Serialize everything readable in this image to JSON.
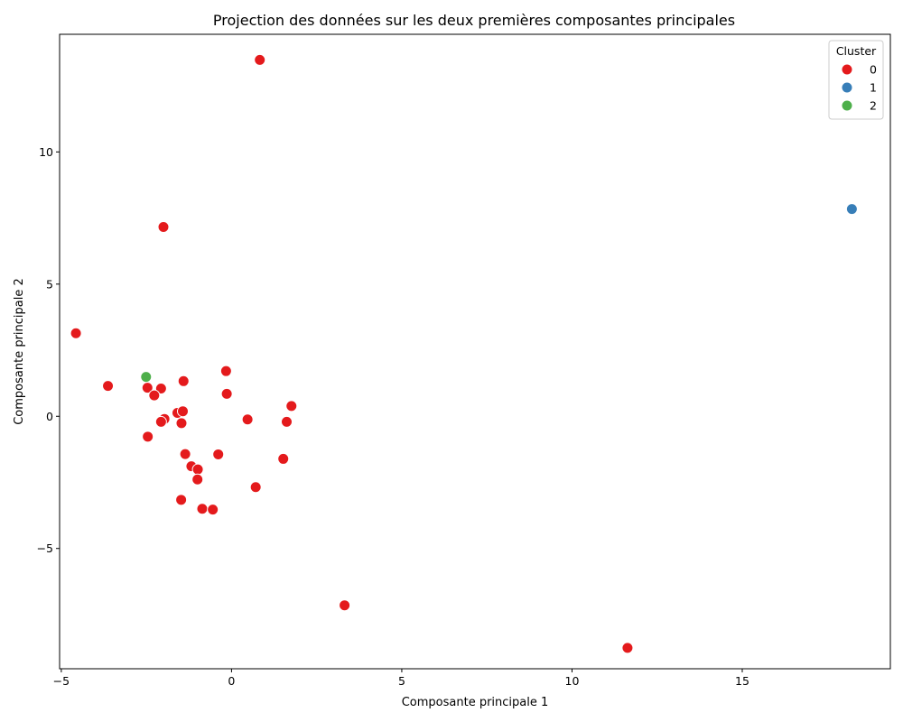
{
  "chart_data": {
    "type": "scatter",
    "title": "Projection des données sur les deux premières composantes principales",
    "xlabel": "Composante principale 1",
    "ylabel": "Composante principale 2",
    "xlim": [
      -5.05,
      19.35
    ],
    "ylim": [
      -9.55,
      14.45
    ],
    "xticks": [
      -5,
      0,
      5,
      10,
      15
    ],
    "xtick_labels": [
      "−5",
      "0",
      "5",
      "10",
      "15"
    ],
    "yticks": [
      -5,
      0,
      5,
      10
    ],
    "ytick_labels": [
      "−5",
      "0",
      "5",
      "10"
    ],
    "grid": false,
    "legend": {
      "title": "Cluster",
      "position": "top-right",
      "entries": [
        {
          "label": "0",
          "color": "#e41a1c"
        },
        {
          "label": "1",
          "color": "#377eb8"
        },
        {
          "label": "2",
          "color": "#4daf4a"
        }
      ]
    },
    "series": [
      {
        "name": "0",
        "color": "#e41a1c",
        "points": [
          [
            0.83,
            13.48
          ],
          [
            -2.0,
            7.16
          ],
          [
            -4.57,
            3.14
          ],
          [
            -3.63,
            1.15
          ],
          [
            -2.47,
            1.08
          ],
          [
            -2.07,
            1.05
          ],
          [
            -2.27,
            0.79
          ],
          [
            -1.41,
            1.33
          ],
          [
            -0.16,
            1.71
          ],
          [
            -0.14,
            0.85
          ],
          [
            1.76,
            0.39
          ],
          [
            -1.59,
            0.13
          ],
          [
            -1.43,
            0.19
          ],
          [
            -1.97,
            -0.1
          ],
          [
            -2.07,
            -0.21
          ],
          [
            -1.47,
            -0.26
          ],
          [
            0.47,
            -0.12
          ],
          [
            1.62,
            -0.21
          ],
          [
            -2.46,
            -0.77
          ],
          [
            -1.36,
            -1.43
          ],
          [
            -0.39,
            -1.44
          ],
          [
            1.52,
            -1.61
          ],
          [
            -1.18,
            -1.89
          ],
          [
            -0.99,
            -2.01
          ],
          [
            -1.0,
            -2.39
          ],
          [
            0.71,
            -2.68
          ],
          [
            -1.48,
            -3.16
          ],
          [
            -0.86,
            -3.5
          ],
          [
            -0.55,
            -3.53
          ],
          [
            3.32,
            -7.15
          ],
          [
            11.63,
            -8.76
          ]
        ]
      },
      {
        "name": "1",
        "color": "#377eb8",
        "points": [
          [
            18.22,
            7.84
          ]
        ]
      },
      {
        "name": "2",
        "color": "#4daf4a",
        "points": [
          [
            -2.51,
            1.49
          ]
        ]
      }
    ]
  }
}
